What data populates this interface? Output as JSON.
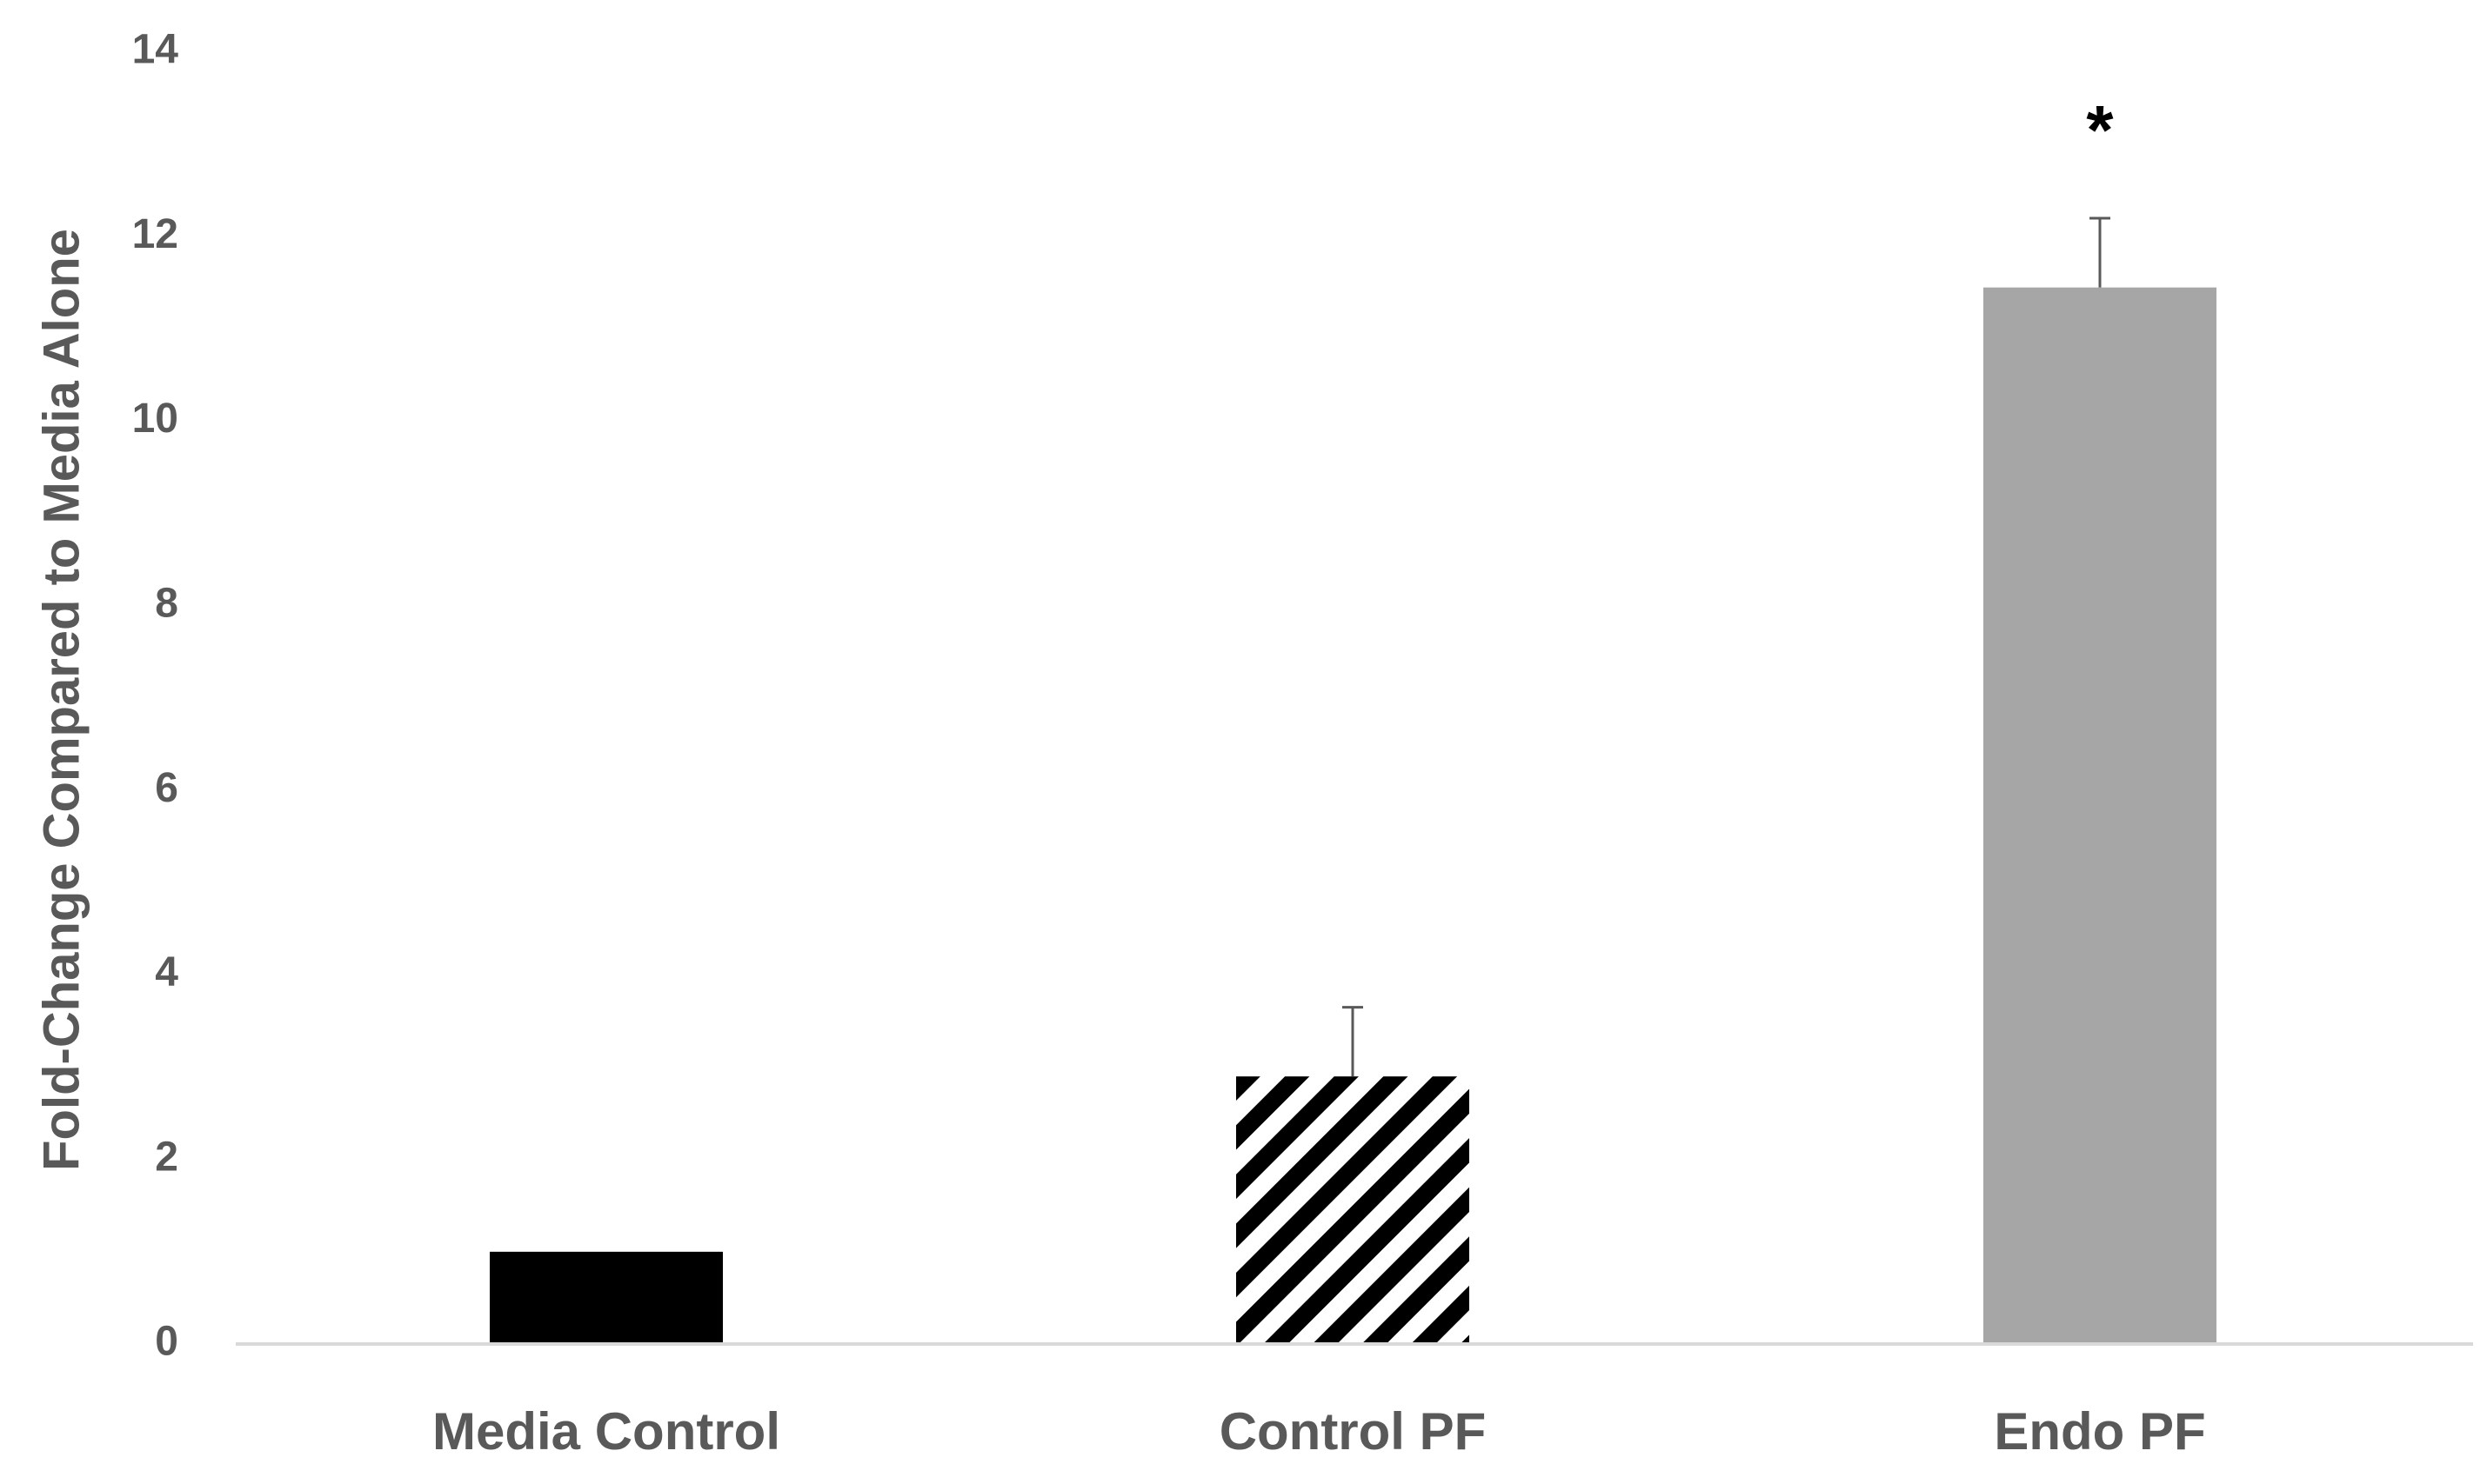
{
  "chart_data": {
    "type": "bar",
    "y_label": "Fold-Change Compared to Media Alone",
    "categories": [
      "Media Control",
      "Control PF",
      "Endo PF"
    ],
    "values": [
      1.0,
      2.9,
      11.45
    ],
    "errors": [
      null,
      0.75,
      0.75
    ],
    "significance": [
      null,
      null,
      "*"
    ],
    "colors": [
      "#000000",
      "#000000",
      "#a6a6a6"
    ],
    "patterns": [
      "solid",
      "diagonal-stripes",
      "solid"
    ],
    "ylim": [
      0,
      14
    ],
    "yticks": [
      0,
      2,
      4,
      6,
      8,
      10,
      12,
      14
    ],
    "grid": false
  }
}
